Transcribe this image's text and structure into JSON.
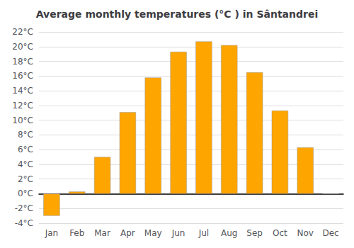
{
  "chart_data": {
    "type": "bar",
    "title": "Average monthly temperatures (°C ) in Sântandrei",
    "categories": [
      "Jan",
      "Feb",
      "Mar",
      "Apr",
      "May",
      "Jun",
      "Jul",
      "Aug",
      "Sep",
      "Oct",
      "Nov",
      "Dec"
    ],
    "values": [
      -3.0,
      0.3,
      5.0,
      11.1,
      15.8,
      19.3,
      20.7,
      20.2,
      16.5,
      11.3,
      6.3,
      0.0
    ],
    "color": "#FFA500",
    "ylim": [
      -4,
      22
    ],
    "yticks": [
      {
        "value": -4,
        "label": "-4°C"
      },
      {
        "value": -2,
        "label": "-2°C"
      },
      {
        "value": 0,
        "label": "0°C"
      },
      {
        "value": 2,
        "label": "2°C"
      },
      {
        "value": 4,
        "label": "4°C"
      },
      {
        "value": 6,
        "label": "6°C"
      },
      {
        "value": 8,
        "label": "8°C"
      },
      {
        "value": 10,
        "label": "10°C"
      },
      {
        "value": 12,
        "label": "12°C"
      },
      {
        "value": 14,
        "label": "14°C"
      },
      {
        "value": 16,
        "label": "16°C"
      },
      {
        "value": 18,
        "label": "18°C"
      },
      {
        "value": 20,
        "label": "20°C"
      },
      {
        "value": 22,
        "label": "22°C"
      }
    ],
    "grid": true
  }
}
